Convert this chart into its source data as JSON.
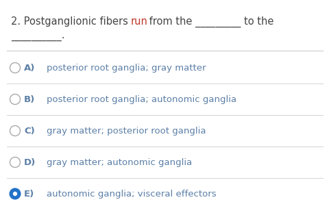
{
  "background_color": "#ffffff",
  "question_line1": "2. Postganglionic fibers ",
  "question_run": "run",
  "question_line1b": " from the _________ to the",
  "question_line2": "__________.",
  "options": [
    {
      "letter": "A)",
      "text": "posterior root ganglia; gray matter",
      "selected": false
    },
    {
      "letter": "B)",
      "text": "posterior root ganglia; autonomic ganglia",
      "selected": false
    },
    {
      "letter": "C)",
      "text": "gray matter; posterior root ganglia",
      "selected": false
    },
    {
      "letter": "D)",
      "text": "gray matter; autonomic ganglia",
      "selected": false
    },
    {
      "letter": "E)",
      "text": "autonomic ganglia; visceral effectors",
      "selected": true
    }
  ],
  "option_text_color": "#5b7fa6",
  "selected_circle_fill": "#2472c8",
  "selected_circle_edge": "#2472c8",
  "circle_edge_color": "#aaaaaa",
  "divider_color": "#cccccc",
  "question_color": "#444444",
  "run_color": "#c0392b",
  "font_size_question": 10.5,
  "font_size_option": 9.5,
  "letter_color": "#5b7fa6"
}
